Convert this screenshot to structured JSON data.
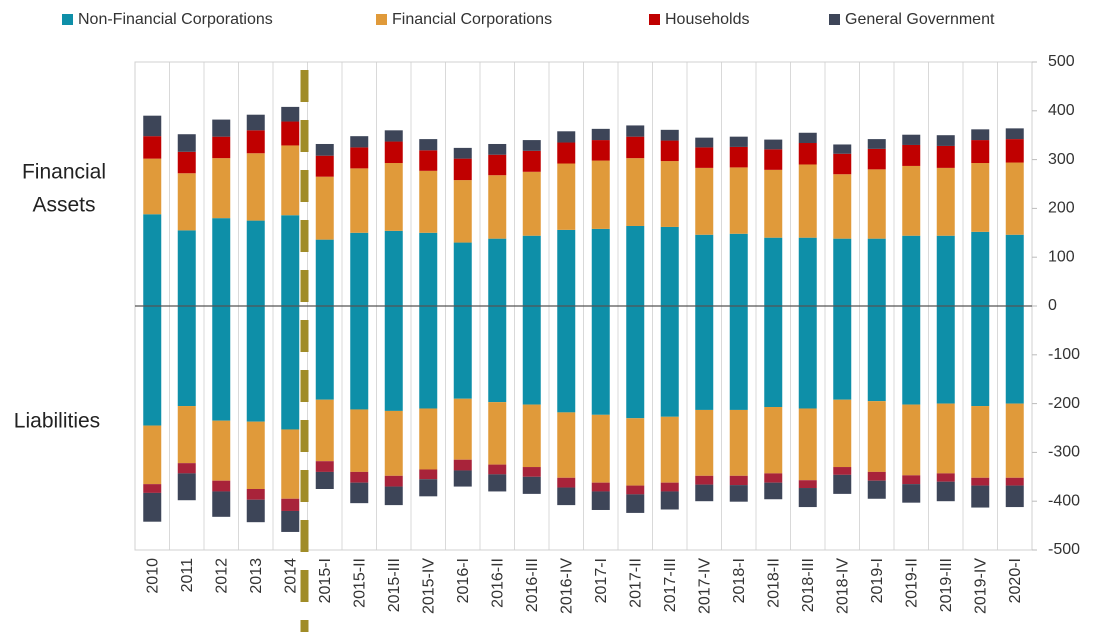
{
  "chart_data": {
    "type": "bar",
    "annotations": [
      "Financial",
      "Assets",
      "Liabilities"
    ],
    "categories": [
      "2010",
      "2011",
      "2012",
      "2013",
      "2014",
      "2015-I",
      "2015-II",
      "2015-III",
      "2015-IV",
      "2016-I",
      "2016-II",
      "2016-III",
      "2016-IV",
      "2017-I",
      "2017-II",
      "2017-III",
      "2017-IV",
      "2018-I",
      "2018-II",
      "2018-III",
      "2018-IV",
      "2019-I",
      "2019-II",
      "2019-III",
      "2019-IV",
      "2020-I"
    ],
    "series": [
      {
        "name": "Non-Financial Corporations",
        "color": "#0e8fa8",
        "values": [
          188,
          155,
          180,
          175,
          186,
          136,
          150,
          154,
          150,
          130,
          138,
          144,
          156,
          158,
          164,
          162,
          146,
          148,
          140,
          140,
          138,
          138,
          144,
          144,
          152,
          146
        ],
        "liability_values": [
          -245,
          -205,
          -235,
          -237,
          -253,
          -192,
          -212,
          -215,
          -210,
          -190,
          -197,
          -202,
          -218,
          -223,
          -230,
          -227,
          -213,
          -213,
          -207,
          -210,
          -192,
          -195,
          -202,
          -200,
          -205,
          -200
        ]
      },
      {
        "name": "Financial Corporations",
        "color": "#e09a3a",
        "values": [
          114,
          117,
          123,
          138,
          143,
          129,
          132,
          139,
          127,
          128,
          130,
          131,
          136,
          140,
          139,
          135,
          137,
          136,
          139,
          150,
          132,
          142,
          143,
          139,
          141,
          148
        ],
        "liability_values": [
          -120,
          -117,
          -123,
          -138,
          -142,
          -126,
          -128,
          -133,
          -125,
          -125,
          -128,
          -128,
          -134,
          -139,
          -138,
          -135,
          -135,
          -135,
          -136,
          -147,
          -138,
          -145,
          -145,
          -143,
          -147,
          -152
        ]
      },
      {
        "name": "Households",
        "color": "#c00000",
        "liability_color": "#a8233a",
        "values": [
          46,
          44,
          44,
          47,
          49,
          43,
          43,
          44,
          42,
          44,
          42,
          43,
          43,
          42,
          44,
          42,
          42,
          42,
          42,
          44,
          42,
          42,
          43,
          45,
          47,
          48
        ],
        "liability_values": [
          -18,
          -21,
          -22,
          -22,
          -25,
          -22,
          -22,
          -22,
          -20,
          -22,
          -20,
          -20,
          -20,
          -18,
          -18,
          -18,
          -18,
          -19,
          -19,
          -16,
          -16,
          -18,
          -18,
          -17,
          -16,
          -16
        ]
      },
      {
        "name": "General Government",
        "color": "#3d4558",
        "values": [
          42,
          36,
          35,
          32,
          30,
          24,
          23,
          23,
          23,
          22,
          22,
          22,
          23,
          23,
          23,
          22,
          20,
          21,
          20,
          21,
          19,
          20,
          21,
          22,
          22,
          22
        ],
        "liability_values": [
          -59,
          -55,
          -52,
          -46,
          -43,
          -35,
          -42,
          -38,
          -35,
          -33,
          -35,
          -35,
          -36,
          -38,
          -38,
          -37,
          -34,
          -34,
          -34,
          -39,
          -39,
          -37,
          -38,
          -40,
          -45,
          -44
        ]
      }
    ],
    "ylim": [
      -500,
      500
    ],
    "yticks": [
      500,
      400,
      300,
      200,
      100,
      0,
      -100,
      -200,
      -300,
      -400,
      -500
    ],
    "grid": true
  }
}
